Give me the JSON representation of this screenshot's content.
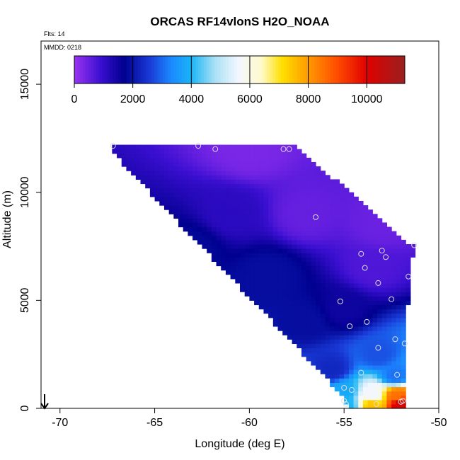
{
  "chart_data": {
    "type": "heatmap",
    "title": "ORCAS RF14vlonS H2O_NOAA",
    "subtitle_lines": [
      "Flts: 14",
      "MMDD: 0218"
    ],
    "xlabel": "Longitude (deg E)",
    "ylabel": "Altitude (m)",
    "xlim": [
      -71,
      -50
    ],
    "ylim": [
      0,
      17000
    ],
    "xticks": [
      -70,
      -65,
      -60,
      -55,
      -50
    ],
    "yticks": [
      0,
      5000,
      10000,
      15000
    ],
    "colorbar": {
      "range": [
        0,
        11300
      ],
      "ticks": [
        0,
        2000,
        4000,
        6000,
        8000,
        10000
      ],
      "stops": [
        {
          "v": 0,
          "c": "#9a33f2"
        },
        {
          "v": 900,
          "c": "#3a0fd0"
        },
        {
          "v": 1700,
          "c": "#00008f"
        },
        {
          "v": 2600,
          "c": "#1a3cd8"
        },
        {
          "v": 3300,
          "c": "#1b88ff"
        },
        {
          "v": 4000,
          "c": "#19b5f5"
        },
        {
          "v": 4800,
          "c": "#a9e0f5"
        },
        {
          "v": 5600,
          "c": "#f2f7ff"
        },
        {
          "v": 6400,
          "c": "#fffacc"
        },
        {
          "v": 7100,
          "c": "#ffe000"
        },
        {
          "v": 8000,
          "c": "#ff9a00"
        },
        {
          "v": 9000,
          "c": "#ff4b00"
        },
        {
          "v": 10000,
          "c": "#e00000"
        },
        {
          "v": 11300,
          "c": "#9a2020"
        }
      ]
    },
    "domain_polygon": [
      [
        -67.3,
        12200
      ],
      [
        -57.6,
        12200
      ],
      [
        -51.7,
        7700
      ],
      [
        -51.3,
        7700
      ],
      [
        -51.8,
        3200
      ],
      [
        -51.8,
        0
      ],
      [
        -54.8,
        0
      ],
      [
        -55.2,
        700
      ],
      [
        -67.3,
        11900
      ]
    ],
    "field_anchors": [
      {
        "lon": -60,
        "alt": 12000,
        "v": 300
      },
      {
        "lon": -57,
        "alt": 9000,
        "v": 500
      },
      {
        "lon": -53,
        "alt": 8500,
        "v": 450
      },
      {
        "lon": -53.5,
        "alt": 6500,
        "v": 700
      },
      {
        "lon": -61,
        "alt": 9000,
        "v": 1100
      },
      {
        "lon": -63,
        "alt": 7500,
        "v": 1800
      },
      {
        "lon": -59,
        "alt": 6200,
        "v": 1900
      },
      {
        "lon": -57,
        "alt": 4000,
        "v": 1900
      },
      {
        "lon": -55,
        "alt": 4600,
        "v": 1500
      },
      {
        "lon": -53.2,
        "alt": 2500,
        "v": 2800
      },
      {
        "lon": -55.6,
        "alt": 1800,
        "v": 2300
      },
      {
        "lon": -52.3,
        "alt": 1500,
        "v": 3100
      },
      {
        "lon": -55,
        "alt": 800,
        "v": 3800
      },
      {
        "lon": -53.5,
        "alt": 600,
        "v": 5600
      },
      {
        "lon": -52.2,
        "alt": 600,
        "v": 8500
      },
      {
        "lon": -52,
        "alt": 200,
        "v": 10300
      },
      {
        "lon": -53.5,
        "alt": 200,
        "v": 7500
      },
      {
        "lon": -54.9,
        "alt": 150,
        "v": 4000
      }
    ],
    "obs_points": [
      {
        "lon": -67.2,
        "alt": 12150
      },
      {
        "lon": -62.7,
        "alt": 12150
      },
      {
        "lon": -61.8,
        "alt": 12000
      },
      {
        "lon": -58.2,
        "alt": 12000
      },
      {
        "lon": -57.9,
        "alt": 12000
      },
      {
        "lon": -56.5,
        "alt": 8850
      },
      {
        "lon": -54.1,
        "alt": 7150
      },
      {
        "lon": -53.9,
        "alt": 6500
      },
      {
        "lon": -53.0,
        "alt": 7300
      },
      {
        "lon": -52.8,
        "alt": 7000
      },
      {
        "lon": -51.3,
        "alt": 7550
      },
      {
        "lon": -51.6,
        "alt": 6100
      },
      {
        "lon": -53.2,
        "alt": 5800
      },
      {
        "lon": -55.2,
        "alt": 4950
      },
      {
        "lon": -52.5,
        "alt": 5050
      },
      {
        "lon": -53.8,
        "alt": 4000
      },
      {
        "lon": -54.7,
        "alt": 3800
      },
      {
        "lon": -52.3,
        "alt": 3200
      },
      {
        "lon": -51.8,
        "alt": 3000
      },
      {
        "lon": -53.2,
        "alt": 2800
      },
      {
        "lon": -54.1,
        "alt": 1650
      },
      {
        "lon": -52.2,
        "alt": 1550
      },
      {
        "lon": -55.0,
        "alt": 950
      },
      {
        "lon": -54.6,
        "alt": 850
      },
      {
        "lon": -55.0,
        "alt": 350
      },
      {
        "lon": -54.9,
        "alt": 200
      },
      {
        "lon": -53.3,
        "alt": 200
      },
      {
        "lon": -51.9,
        "alt": 350
      },
      {
        "lon": -52.0,
        "alt": 300
      }
    ]
  }
}
